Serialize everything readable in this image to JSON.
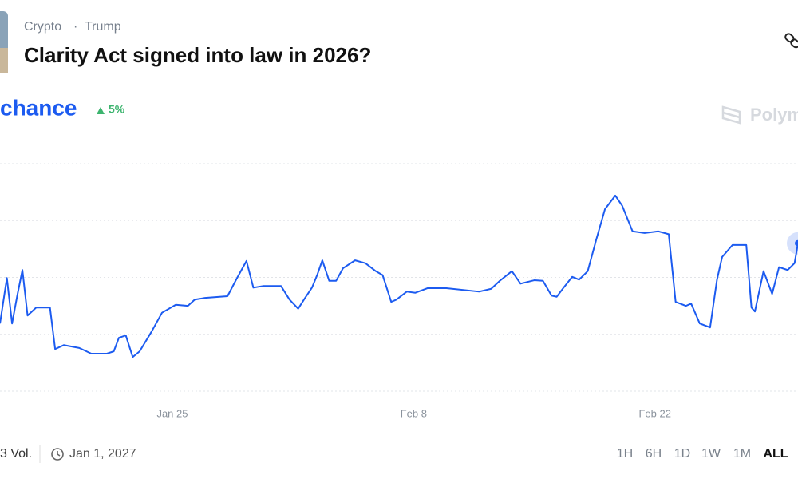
{
  "header": {
    "breadcrumb": [
      "Crypto",
      "·",
      "Trump"
    ],
    "title": "Clarity Act signed into law in 2026?"
  },
  "summary": {
    "label": "chance",
    "change": "5%"
  },
  "watermark": "Polymarket",
  "chart_data": {
    "type": "line",
    "x": [
      15.0,
      15.4,
      15.7,
      16.0,
      16.3,
      16.6,
      17.1,
      17.9,
      18.2,
      18.7,
      19.6,
      20.3,
      21.2,
      21.6,
      21.9,
      22.3,
      22.7,
      23.1,
      23.8,
      24.4,
      25.2,
      25.9,
      26.3,
      26.9,
      28.2,
      28.7,
      29.3,
      29.7,
      30.3,
      31.3,
      31.8,
      32.3,
      32.7,
      33.1,
      33.4,
      33.7,
      34.1,
      34.5,
      34.9,
      35.6,
      36.2,
      36.8,
      37.2,
      37.7,
      38.0,
      38.6,
      39.1,
      39.8,
      40.9,
      42.8,
      43.5,
      44.0,
      44.7,
      45.2,
      46.0,
      46.5,
      47.0,
      47.3,
      47.7,
      48.2,
      48.6,
      49.1,
      49.6,
      50.1,
      50.7,
      51.1,
      51.7,
      52.4,
      53.2,
      53.8,
      54.2,
      54.8,
      55.1,
      55.6,
      56.2,
      56.6,
      56.9,
      57.5,
      58.3,
      58.6,
      58.8,
      59.3,
      59.8,
      60.2,
      60.7,
      61.1,
      61.3
    ],
    "series": [
      {
        "name": "chance",
        "color": "#1c5bf0",
        "values": [
          51.9,
          59.9,
          51.9,
          56.8,
          61.3,
          53.3,
          54.7,
          54.7,
          47.4,
          48.1,
          47.6,
          46.6,
          46.6,
          47.0,
          49.4,
          49.8,
          46.0,
          47.0,
          50.5,
          53.8,
          55.2,
          55.0,
          56.1,
          56.4,
          56.7,
          59.6,
          62.9,
          58.2,
          58.5,
          58.5,
          56.1,
          54.5,
          56.4,
          58.2,
          60.4,
          63.0,
          59.4,
          59.4,
          61.6,
          63.0,
          62.5,
          61.1,
          60.4,
          55.7,
          56.1,
          57.5,
          57.3,
          58.1,
          58.1,
          57.5,
          58.0,
          59.4,
          61.1,
          58.9,
          59.5,
          59.4,
          56.8,
          56.6,
          58.2,
          60.1,
          59.6,
          61.1,
          66.7,
          72.0,
          74.4,
          72.6,
          68.1,
          67.8,
          68.1,
          67.6,
          55.7,
          55.0,
          55.4,
          51.9,
          51.2,
          59.6,
          63.6,
          65.7,
          65.7,
          54.7,
          54.0,
          61.1,
          57.1,
          61.8,
          61.3,
          62.5,
          66.0
        ]
      }
    ],
    "xlim": [
      15.0,
      61.3
    ],
    "xticks": [
      {
        "value": 25,
        "label": "Jan 25"
      },
      {
        "value": 39,
        "label": "Feb 8"
      },
      {
        "value": 53,
        "label": "Feb 22"
      }
    ],
    "ylim": [
      40,
      80
    ],
    "yticks": [
      40,
      50,
      60,
      70,
      80
    ],
    "grid": true
  },
  "footer": {
    "volume": "3 Vol.",
    "end_date": "Jan 1, 2027",
    "ranges": [
      "1H",
      "6H",
      "1D",
      "1W",
      "1M",
      "ALL"
    ],
    "selected_range": "ALL"
  }
}
